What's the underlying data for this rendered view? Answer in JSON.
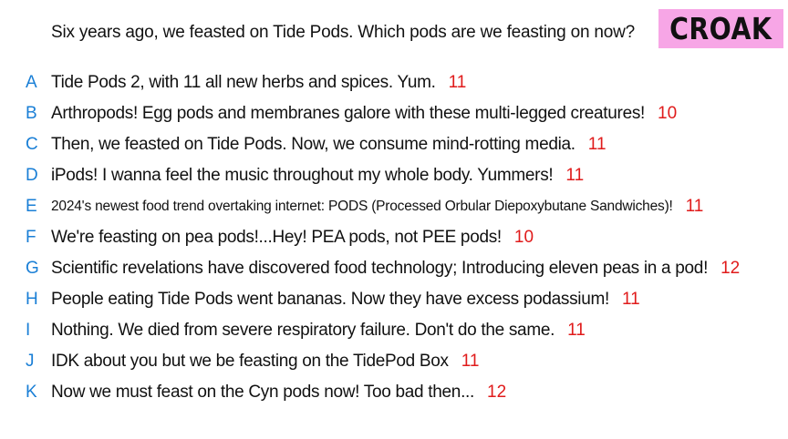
{
  "prompt": "Six years ago, we feasted on Tide Pods. Which pods are we feasting on now?",
  "badge": "CROAK",
  "colors": {
    "letter": "#1a7fd6",
    "count": "#e01b1b",
    "badge_bg": "#f7a6e6"
  },
  "answers": [
    {
      "letter": "A",
      "text": "Tide Pods 2, with 11 all new herbs and spices. Yum.",
      "count": "11"
    },
    {
      "letter": "B",
      "text": "Arthropods! Egg pods and membranes galore with these multi-legged creatures!",
      "count": "10"
    },
    {
      "letter": "C",
      "text": "Then, we feasted on Tide Pods. Now, we consume mind-rotting media.",
      "count": "11"
    },
    {
      "letter": "D",
      "text": "iPods! I wanna feel the music throughout my whole body. Yummers!",
      "count": "11"
    },
    {
      "letter": "E",
      "text": "2024's newest food trend overtaking internet: PODS (Processed Orbular Diepoxybutane Sandwiches)!",
      "count": "11"
    },
    {
      "letter": "F",
      "text": "We're feasting on pea pods!...Hey! PEA pods, not PEE pods!",
      "count": "10"
    },
    {
      "letter": "G",
      "text": "Scientific revelations have discovered food technology; Introducing eleven peas in a pod!",
      "count": "12"
    },
    {
      "letter": "H",
      "text": "People eating Tide Pods went bananas. Now they have excess podassium!",
      "count": "11"
    },
    {
      "letter": "I",
      "text": "Nothing. We died from severe respiratory failure. Don't do the same.",
      "count": "11"
    },
    {
      "letter": "J",
      "text": "IDK about you but we be feasting on the TidePod Box",
      "count": "11"
    },
    {
      "letter": "K",
      "text": "Now we must feast on the Cyn pods now! Too bad then...",
      "count": "12"
    }
  ]
}
